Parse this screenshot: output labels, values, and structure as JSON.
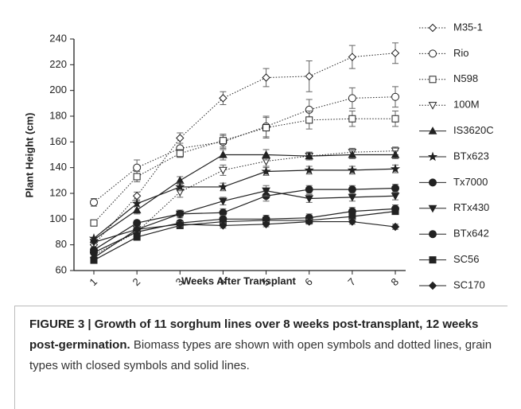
{
  "chart_data": {
    "type": "line",
    "ylabel": "Plant Height (cm)",
    "xlabel": "Weeks After Transplant",
    "categories": [
      1,
      2,
      3,
      4,
      5,
      6,
      7,
      8
    ],
    "ylim": [
      60,
      240
    ],
    "yticks": [
      60,
      80,
      100,
      120,
      140,
      160,
      180,
      200,
      220,
      240
    ],
    "series": [
      {
        "name": "M35-1",
        "marker": "diamond",
        "filled": false,
        "line_style": "dotted",
        "color": "#222222",
        "values": [
          80,
          118,
          163,
          194,
          210,
          211,
          226,
          229
        ],
        "errors": [
          0,
          3,
          4,
          5,
          7,
          12,
          9,
          8
        ]
      },
      {
        "name": "Rio",
        "marker": "circle",
        "filled": false,
        "line_style": "dotted",
        "color": "#222222",
        "values": [
          113,
          140,
          155,
          160,
          172,
          185,
          194,
          195
        ],
        "errors": [
          3,
          6,
          4,
          5,
          8,
          8,
          8,
          8
        ]
      },
      {
        "name": "N598",
        "marker": "square",
        "filled": false,
        "line_style": "dotted",
        "color": "#222222",
        "values": [
          97,
          133,
          151,
          161,
          171,
          177,
          178,
          178
        ],
        "errors": [
          0,
          4,
          3,
          5,
          8,
          7,
          6,
          6
        ]
      },
      {
        "name": "100M",
        "marker": "triangle-down",
        "filled": false,
        "line_style": "dotted",
        "color": "#222222",
        "values": [
          72,
          90,
          121,
          138,
          145,
          149,
          152,
          153
        ],
        "errors": [
          0,
          3,
          4,
          4,
          4,
          3,
          3,
          3
        ]
      },
      {
        "name": "IS3620C",
        "marker": "triangle-up",
        "filled": true,
        "line_style": "solid",
        "color": "#222222",
        "values": [
          84,
          107,
          130,
          150,
          150,
          149,
          150,
          150
        ],
        "errors": [
          0,
          3,
          3,
          4,
          4,
          3,
          3,
          3
        ]
      },
      {
        "name": "BTx623",
        "marker": "star",
        "filled": true,
        "line_style": "solid",
        "color": "#222222",
        "values": [
          85,
          112,
          125,
          125,
          137,
          138,
          138,
          139
        ],
        "errors": [
          0,
          2,
          3,
          3,
          3,
          3,
          3,
          3
        ]
      },
      {
        "name": "Tx7000",
        "marker": "circle",
        "filled": true,
        "line_style": "solid",
        "color": "#222222",
        "values": [
          76,
          97,
          104,
          105,
          118,
          123,
          123,
          124
        ],
        "errors": [
          0,
          2,
          3,
          3,
          4,
          3,
          3,
          3
        ]
      },
      {
        "name": "RTx430",
        "marker": "triangle-down",
        "filled": true,
        "line_style": "solid",
        "color": "#222222",
        "values": [
          82,
          92,
          104,
          114,
          122,
          116,
          117,
          118
        ],
        "errors": [
          0,
          2,
          2,
          3,
          4,
          3,
          3,
          3
        ]
      },
      {
        "name": "BTx642",
        "marker": "circle",
        "filled": true,
        "line_style": "solid",
        "color": "#222222",
        "values": [
          74,
          90,
          97,
          100,
          100,
          101,
          106,
          108
        ],
        "errors": [
          0,
          2,
          2,
          3,
          3,
          3,
          3,
          3
        ]
      },
      {
        "name": "SC56",
        "marker": "square",
        "filled": true,
        "line_style": "solid",
        "color": "#222222",
        "values": [
          68,
          86,
          95,
          98,
          99,
          99,
          102,
          106
        ],
        "errors": [
          0,
          2,
          2,
          2,
          2,
          2,
          2,
          2
        ]
      },
      {
        "name": "SC170",
        "marker": "diamond",
        "filled": true,
        "line_style": "solid",
        "color": "#222222",
        "values": [
          70,
          92,
          96,
          95,
          96,
          98,
          98,
          94
        ],
        "errors": [
          0,
          2,
          2,
          2,
          2,
          2,
          2,
          2
        ]
      }
    ]
  },
  "caption": {
    "label": "FIGURE 3 | Growth of 11 sorghum lines over 8 weeks post-transplant, 12 weeks post-germination.",
    "text": "Biomass types are shown with open symbols and dotted lines, grain types with closed symbols and solid lines."
  }
}
